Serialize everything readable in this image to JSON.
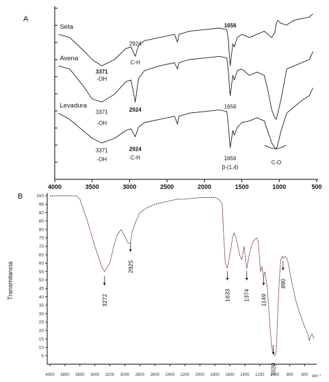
{
  "chart_data": [
    {
      "type": "line",
      "panel_label": "A",
      "x_ticks": [
        "4000",
        "3500",
        "3000",
        "2500",
        "2000",
        "1500",
        "1000",
        "500"
      ],
      "xlim": [
        4000,
        500
      ],
      "series": [
        {
          "name": "Seta",
          "x": [
            3950,
            3800,
            3600,
            3500,
            3371,
            3200,
            3050,
            2980,
            2924,
            2880,
            2800,
            2600,
            2400,
            2360,
            2340,
            2200,
            2000,
            1800,
            1700,
            1680,
            1656,
            1620,
            1600,
            1560,
            1500,
            1400,
            1300,
            1200,
            1150,
            1100,
            1060,
            1040,
            1020,
            980,
            900,
            800,
            700,
            600,
            550
          ],
          "y": [
            0.86,
            0.84,
            0.75,
            0.7,
            0.66,
            0.7,
            0.77,
            0.78,
            0.72,
            0.79,
            0.82,
            0.84,
            0.86,
            0.81,
            0.86,
            0.88,
            0.89,
            0.9,
            0.89,
            0.82,
            0.66,
            0.8,
            0.78,
            0.84,
            0.86,
            0.84,
            0.86,
            0.88,
            0.86,
            0.84,
            0.87,
            0.93,
            0.95,
            0.93,
            0.92,
            0.95,
            0.96,
            0.97,
            0.99
          ]
        },
        {
          "name": "Avena",
          "x": [
            3950,
            3800,
            3600,
            3500,
            3371,
            3200,
            3050,
            2980,
            2924,
            2880,
            2800,
            2600,
            2400,
            2360,
            2340,
            2200,
            2000,
            1800,
            1700,
            1680,
            1656,
            1620,
            1600,
            1560,
            1500,
            1400,
            1300,
            1200,
            1150,
            1100,
            1060,
            1040,
            1020,
            980,
            900,
            800,
            700,
            600,
            550
          ],
          "y": [
            0.66,
            0.64,
            0.52,
            0.45,
            0.43,
            0.48,
            0.56,
            0.57,
            0.43,
            0.58,
            0.63,
            0.66,
            0.68,
            0.64,
            0.68,
            0.7,
            0.71,
            0.72,
            0.71,
            0.62,
            0.47,
            0.6,
            0.57,
            0.63,
            0.64,
            0.6,
            0.62,
            0.6,
            0.5,
            0.38,
            0.33,
            0.32,
            0.36,
            0.44,
            0.64,
            0.66,
            0.68,
            0.7,
            0.75
          ]
        },
        {
          "name": "Levadura",
          "x": [
            3950,
            3800,
            3600,
            3500,
            3371,
            3200,
            3050,
            2980,
            2924,
            2880,
            2800,
            2600,
            2400,
            2360,
            2340,
            2200,
            2000,
            1800,
            1700,
            1680,
            1656,
            1620,
            1600,
            1560,
            1500,
            1400,
            1300,
            1200,
            1150,
            1100,
            1060,
            1040,
            1020,
            980,
            900,
            800,
            700,
            600,
            550
          ],
          "y": [
            0.36,
            0.32,
            0.24,
            0.2,
            0.17,
            0.2,
            0.25,
            0.26,
            0.21,
            0.27,
            0.3,
            0.32,
            0.34,
            0.29,
            0.34,
            0.36,
            0.37,
            0.38,
            0.37,
            0.28,
            0.14,
            0.25,
            0.22,
            0.27,
            0.3,
            0.31,
            0.33,
            0.31,
            0.24,
            0.17,
            0.14,
            0.13,
            0.16,
            0.24,
            0.36,
            0.4,
            0.44,
            0.47,
            0.52
          ]
        }
      ],
      "annotations": [
        {
          "text": "2924",
          "x": 2924,
          "y": 0.79,
          "bold": false
        },
        {
          "text": "C-H",
          "x": 2924,
          "y": 0.67,
          "bold": false
        },
        {
          "text": "3371",
          "x": 3371,
          "y": 0.61,
          "bold": true
        },
        {
          "text": "-OH",
          "x": 3371,
          "y": 0.565,
          "bold": false
        },
        {
          "text": "1656",
          "x": 1656,
          "y": 0.905,
          "bold": true
        },
        {
          "text": "3371",
          "x": 3371,
          "y": 0.355,
          "bold": false
        },
        {
          "text": "-OH",
          "x": 3371,
          "y": 0.285,
          "bold": false
        },
        {
          "text": "2924",
          "x": 2924,
          "y": 0.37,
          "bold": true
        },
        {
          "text": "1656",
          "x": 1656,
          "y": 0.39,
          "bold": false
        },
        {
          "text": "3371",
          "x": 3371,
          "y": 0.11,
          "bold": false
        },
        {
          "text": "-OH",
          "x": 3371,
          "y": 0.055,
          "bold": false
        },
        {
          "text": "2924",
          "x": 2924,
          "y": 0.12,
          "bold": true
        },
        {
          "text": "C-H",
          "x": 2924,
          "y": 0.065,
          "bold": false
        },
        {
          "text": "1656",
          "x": 1656,
          "y": 0.06,
          "bold": false
        },
        {
          "text": "β-(1,4)",
          "x": 1656,
          "y": 0.005,
          "bold": false
        },
        {
          "text": "C-O",
          "x": 1040,
          "y": 0.035,
          "bold": false
        }
      ]
    },
    {
      "type": "line",
      "panel_label": "B",
      "ylabel": "Transmitancia",
      "x_unit": "cm⁻¹",
      "xlim": [
        4000,
        450
      ],
      "ylim": [
        0,
        100
      ],
      "x_ticks": [
        "4000",
        "3800",
        "3600",
        "3400",
        "3200",
        "3000",
        "2800",
        "2600",
        "2400",
        "2200",
        "2000",
        "1800",
        "1600",
        "1400",
        "1200",
        "1000",
        "800",
        "600"
      ],
      "y_ticks": [
        "100",
        "95",
        "90",
        "85",
        "80",
        "75",
        "70",
        "65",
        "60",
        "55",
        "50",
        "45",
        "40",
        "35",
        "30",
        "25",
        "20",
        "15",
        "10",
        "5"
      ],
      "series": [
        {
          "x": [
            4000,
            3800,
            3650,
            3600,
            3500,
            3400,
            3300,
            3272,
            3200,
            3150,
            3100,
            3050,
            3000,
            2960,
            2925,
            2900,
            2850,
            2800,
            2700,
            2600,
            2500,
            2400,
            2300,
            2200,
            2100,
            2000,
            1900,
            1800,
            1750,
            1700,
            1680,
            1660,
            1633,
            1600,
            1560,
            1540,
            1500,
            1470,
            1440,
            1410,
            1374,
            1340,
            1300,
            1270,
            1240,
            1220,
            1190,
            1170,
            1149,
            1130,
            1100,
            1060,
            1040,
            1020,
            1000,
            980,
            960,
            940,
            920,
            900,
            890,
            860,
            840,
            820,
            800,
            760,
            720,
            680,
            640,
            600,
            560,
            540,
            520,
            500,
            480
          ],
          "y": [
            100,
            100,
            100,
            98,
            85,
            70,
            57,
            55,
            60,
            70,
            77,
            80,
            76,
            72,
            72,
            79,
            85,
            90,
            93,
            95,
            96,
            97,
            98,
            98,
            98.5,
            99,
            99,
            99,
            98,
            95,
            75,
            60,
            57,
            65,
            76,
            78,
            72,
            65,
            62,
            70,
            57,
            65,
            72,
            74,
            75,
            73,
            55,
            58,
            52,
            55,
            45,
            20,
            10,
            6,
            5,
            8,
            30,
            50,
            62,
            64,
            63,
            64,
            63,
            60,
            55,
            46,
            38,
            32,
            27,
            22,
            18,
            14,
            17,
            18,
            15
          ]
        }
      ],
      "annotations": [
        {
          "text": "3272",
          "x": 3272,
          "y": 45
        },
        {
          "text": "2925",
          "x": 2925,
          "y": 65
        },
        {
          "text": "1633",
          "x": 1633,
          "y": 48
        },
        {
          "text": "1374",
          "x": 1374,
          "y": 48
        },
        {
          "text": "1149",
          "x": 1149,
          "y": 45
        },
        {
          "text": "890",
          "x": 890,
          "y": 54
        },
        {
          "text": "1020",
          "x": 1020,
          "y": 4
        }
      ]
    }
  ],
  "panel_a": {
    "label": "A"
  },
  "panel_b": {
    "label": "B"
  },
  "colors": {
    "line": "#1a1a1a",
    "axis": "#000000",
    "trace_b": "#6b2a2a"
  }
}
